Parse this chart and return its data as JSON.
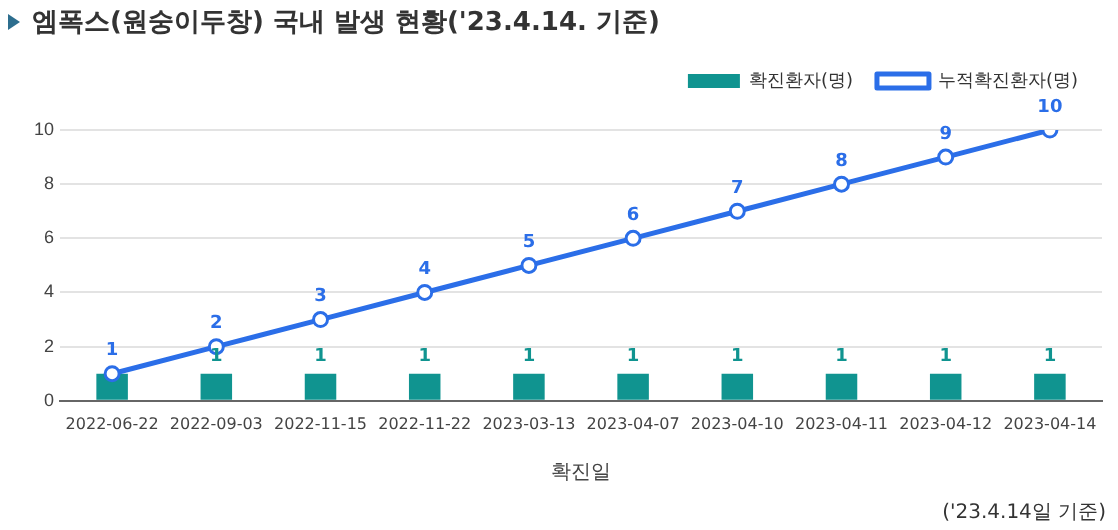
{
  "chart_data": {
    "type": "bar",
    "title": "엠폭스(원숭이두창) 국내 발생 현황('23.4.14. 기준)",
    "xlabel": "확진일",
    "categories": [
      "2022-06-22",
      "2022-09-03",
      "2022-11-15",
      "2022-11-22",
      "2023-03-13",
      "2023-04-07",
      "2023-04-10",
      "2023-04-11",
      "2023-04-12",
      "2023-04-14"
    ],
    "series": [
      {
        "name": "확진환자(명)",
        "color": "#109490",
        "values": [
          1,
          1,
          1,
          1,
          1,
          1,
          1,
          1,
          1,
          1
        ],
        "value_labels": [
          null,
          "1",
          "1",
          "1",
          "1",
          "1",
          "1",
          "1",
          "1",
          "1"
        ]
      },
      {
        "name": "누적확진환자(명)",
        "type": "line",
        "color": "#2b6ee8",
        "values": [
          1,
          2,
          3,
          4,
          5,
          6,
          7,
          8,
          9,
          10
        ],
        "value_labels": [
          "1",
          "2",
          "3",
          "4",
          "5",
          "6",
          "7",
          "8",
          "9",
          "10"
        ]
      }
    ],
    "ylim": [
      0,
      10
    ],
    "yticks": [
      0,
      2,
      4,
      6,
      8,
      10
    ],
    "grid": "y",
    "legend": "top right",
    "marker": "circle",
    "line_style": "solid",
    "annotations": [
      "('23.4.14일 기준)"
    ]
  }
}
